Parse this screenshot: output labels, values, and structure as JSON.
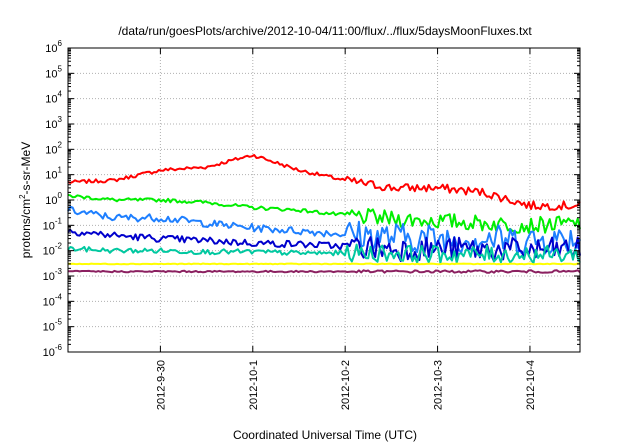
{
  "chart_data": {
    "type": "line",
    "title": "/data/run/goesPlots/archive/2012-10-04/11:00/flux/../flux/5daysMoonFluxes.txt",
    "xlabel": "Coordinated Universal Time (UTC)",
    "ylabel": "protons/cm²-s-sr-MeV",
    "yscale": "log",
    "ylim": [
      1e-06,
      1000000.0
    ],
    "xlim": [
      "2012-09-29T00:00",
      "2012-10-04T13:00"
    ],
    "grid": true,
    "legend": "none",
    "y_tick_labels": [
      "10",
      "-6",
      "-5",
      "-4",
      "-3",
      "-2",
      "-1",
      "0",
      "1",
      "2",
      "3",
      "4",
      "5",
      "6"
    ],
    "y_tick_exponents": [
      -6,
      -5,
      -4,
      -3,
      -2,
      -1,
      0,
      1,
      2,
      3,
      4,
      5,
      6
    ],
    "x_ticks": [
      {
        "label": "2012-9-30",
        "x": "2012-09-30T00:00"
      },
      {
        "label": "2012-10-1",
        "x": "2012-10-01T00:00"
      },
      {
        "label": "2012-10-2",
        "x": "2012-10-02T00:00"
      },
      {
        "label": "2012-10-3",
        "x": "2012-10-03T00:00"
      },
      {
        "label": "2012-10-4",
        "x": "2012-10-04T00:00"
      }
    ],
    "x": [
      "2012-09-29T00:00",
      "2012-09-29T12:00",
      "2012-09-30T00:00",
      "2012-09-30T12:00",
      "2012-10-01T00:00",
      "2012-10-01T12:00",
      "2012-10-02T00:00",
      "2012-10-02T12:00",
      "2012-10-03T00:00",
      "2012-10-03T12:00",
      "2012-10-04T00:00",
      "2012-10-04T13:00"
    ],
    "series": [
      {
        "color": "#ff0000",
        "values": [
          5,
          6,
          15,
          20,
          60,
          15,
          6,
          3,
          3,
          2,
          0.6,
          0.6
        ]
      },
      {
        "color": "#00ee00",
        "values": [
          1.5,
          1,
          1,
          0.8,
          0.5,
          0.4,
          0.25,
          0.18,
          0.15,
          0.12,
          0.1,
          0.12
        ]
      },
      {
        "color": "#1e7fff",
        "values": [
          0.4,
          0.2,
          0.2,
          0.12,
          0.08,
          0.06,
          0.045,
          0.035,
          0.03,
          0.03,
          0.025,
          0.03
        ]
      },
      {
        "color": "#0000cc",
        "values": [
          0.06,
          0.04,
          0.03,
          0.025,
          0.02,
          0.018,
          0.015,
          0.012,
          0.012,
          0.011,
          0.01,
          0.012
        ]
      },
      {
        "color": "#00c8a0",
        "values": [
          0.012,
          0.01,
          0.01,
          0.009,
          0.009,
          0.008,
          0.008,
          0.008,
          0.007,
          0.007,
          0.007,
          0.007
        ]
      },
      {
        "color": "#ffff00",
        "values": [
          0.003,
          0.003,
          0.003,
          0.003,
          0.003,
          0.003,
          0.003,
          0.003,
          0.003,
          0.003,
          0.003,
          0.003
        ]
      },
      {
        "color": "#8b2060",
        "values": [
          0.0015,
          0.0015,
          0.0015,
          0.0015,
          0.0015,
          0.0015,
          0.0015,
          0.0015,
          0.0015,
          0.0015,
          0.0015,
          0.0015
        ]
      }
    ]
  }
}
